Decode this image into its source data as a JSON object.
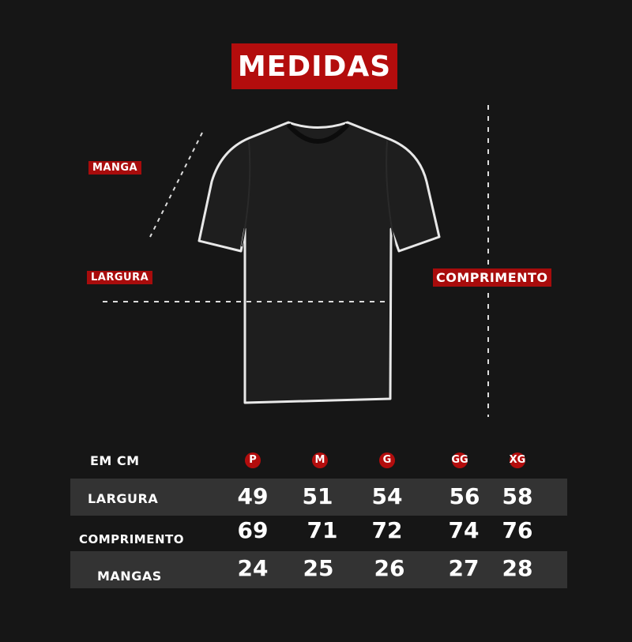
{
  "title": "MEDIDAS",
  "labels": {
    "manga": "MANGA",
    "largura": "LARGURA",
    "comprimento": "COMPRIMENTO"
  },
  "colors": {
    "accent": "#b30d0d",
    "background": "#161616",
    "row_shade": "#333333"
  },
  "table": {
    "unit_label": "EM CM",
    "sizes": [
      "P",
      "M",
      "G",
      "GG",
      "XG"
    ],
    "rows": [
      {
        "label": "LARGURA",
        "values": [
          "49",
          "51",
          "54",
          "56",
          "58"
        ]
      },
      {
        "label": "COMPRIMENTO",
        "values": [
          "69",
          "71",
          "72",
          "74",
          "76"
        ]
      },
      {
        "label": "MANGAS",
        "values": [
          "24",
          "25",
          "26",
          "27",
          "28"
        ]
      }
    ]
  }
}
